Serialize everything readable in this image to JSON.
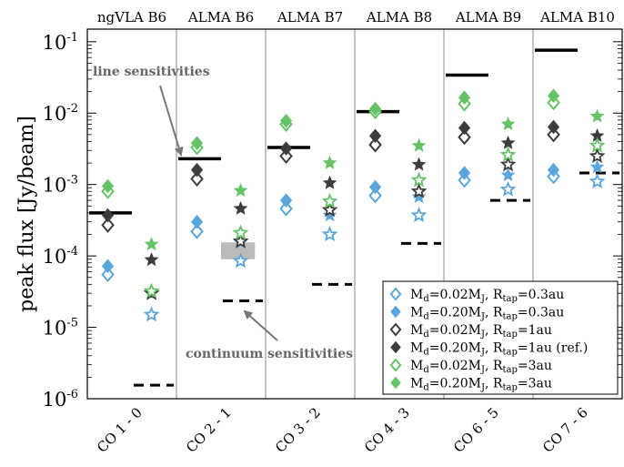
{
  "chart_data": {
    "type": "scatter",
    "ylabel": "peak flux [Jy/beam]",
    "yscale": "log",
    "ylim": [
      1e-06,
      0.15
    ],
    "grid": false,
    "legend_position": "bottom-right",
    "categories": [
      "CO 1 - 0",
      "CO 2 - 1",
      "CO 3 - 2",
      "CO 4 - 3",
      "CO 6 - 5",
      "CO 7 - 6"
    ],
    "bands": [
      "ngVLA B6",
      "ALMA B6",
      "ALMA B7",
      "ALMA B8",
      "ALMA B9",
      "ALMA B10"
    ],
    "ytick_labels": [
      {
        "base": "10",
        "exp": "-6",
        "value": 1e-06
      },
      {
        "base": "10",
        "exp": "-5",
        "value": 1e-05
      },
      {
        "base": "10",
        "exp": "-4",
        "value": 0.0001
      },
      {
        "base": "10",
        "exp": "-3",
        "value": 0.001
      },
      {
        "base": "10",
        "exp": "-2",
        "value": 0.01
      },
      {
        "base": "10",
        "exp": "-1",
        "value": 0.1
      }
    ],
    "series": [
      {
        "name": "M_d=0.02M_J, R_tap=0.3au",
        "legend": {
          "pre": "M",
          "sub1": "d",
          "mid": "=0.02M",
          "sub2": "J",
          "mid2": ", R",
          "sub3": "tap",
          "post": "=0.3au"
        },
        "marker": "diamond",
        "filled": false,
        "color": "#5aa5dc",
        "values": [
          5.5e-05,
          0.00022,
          0.00046,
          0.0007,
          0.00115,
          0.0013
        ],
        "star_values": [
          1.5e-05,
          8.5e-05,
          0.0002,
          0.00037,
          0.00085,
          0.0011
        ]
      },
      {
        "name": "M_d=0.20M_J, R_tap=0.3au",
        "legend": {
          "pre": "M",
          "sub1": "d",
          "mid": "=0.20M",
          "sub2": "J",
          "mid2": ", R",
          "sub3": "tap",
          "post": "=0.3au"
        },
        "marker": "diamond",
        "filled": true,
        "color": "#5aa5dc",
        "values": [
          7.2e-05,
          0.0003,
          0.0006,
          0.00092,
          0.00145,
          0.0016
        ],
        "star_values": [
          3e-05,
          0.000155,
          0.00037,
          0.00067,
          0.00135,
          0.00175
        ]
      },
      {
        "name": "M_d=0.02M_J, R_tap=1au",
        "legend": {
          "pre": "M",
          "sub1": "d",
          "mid": "=0.02M",
          "sub2": "J",
          "mid2": ", R",
          "sub3": "tap",
          "post": "=1au"
        },
        "marker": "diamond",
        "filled": false,
        "color": "#3c3c3c",
        "values": [
          0.00027,
          0.0012,
          0.0025,
          0.0036,
          0.0046,
          0.005
        ],
        "star_values": [
          3e-05,
          0.00016,
          0.00044,
          0.0008,
          0.0019,
          0.0025
        ]
      },
      {
        "name": "M_d=0.20M_J, R_tap=1au (ref.)",
        "legend": {
          "pre": "M",
          "sub1": "d",
          "mid": "=0.20M",
          "sub2": "J",
          "mid2": ", R",
          "sub3": "tap",
          "post": "=1au (ref.)"
        },
        "marker": "diamond",
        "filled": true,
        "color": "#3c3c3c",
        "values": [
          0.00037,
          0.0016,
          0.0032,
          0.0048,
          0.0062,
          0.0064
        ],
        "star_values": [
          8.8e-05,
          0.00046,
          0.00105,
          0.0019,
          0.0038,
          0.0048
        ]
      },
      {
        "name": "M_d=0.02M_J, R_tap=3au",
        "legend": {
          "pre": "M",
          "sub1": "d",
          "mid": "=0.02M",
          "sub2": "J",
          "mid2": ", R",
          "sub3": "tap",
          "post": "=3au"
        },
        "marker": "diamond",
        "filled": false,
        "color": "#66c266",
        "values": [
          0.0008,
          0.0033,
          0.007,
          0.0105,
          0.0135,
          0.014
        ],
        "star_values": [
          3.2e-05,
          0.00021,
          0.00058,
          0.00115,
          0.0026,
          0.0035
        ]
      },
      {
        "name": "M_d=0.20M_J, R_tap=3au",
        "legend": {
          "pre": "M",
          "sub1": "d",
          "mid": "=0.20M",
          "sub2": "J",
          "mid2": ", R",
          "sub3": "tap",
          "post": "=3au"
        },
        "marker": "diamond",
        "filled": true,
        "color": "#66c266",
        "values": [
          0.00095,
          0.0038,
          0.0078,
          0.0115,
          0.0165,
          0.0175
        ],
        "star_values": [
          0.000145,
          0.00082,
          0.002,
          0.0035,
          0.007,
          0.009
        ]
      }
    ],
    "line_sensitivities": [
      0.0004,
      0.0023,
      0.0033,
      0.0105,
      0.034,
      0.076
    ],
    "continuum_sensitivities": [
      1.55e-06,
      2.35e-05,
      4e-05,
      0.00015,
      0.0006,
      0.00145
    ],
    "continuum_band_shading": {
      "category": "CO 2 - 1",
      "range": [
        9e-05,
        0.000155
      ],
      "color": "#bbbbbb"
    },
    "annotations": [
      {
        "text": "line sensitivities",
        "color": "#666666"
      },
      {
        "text": "continuum sensitivities",
        "color": "#666666"
      }
    ]
  }
}
